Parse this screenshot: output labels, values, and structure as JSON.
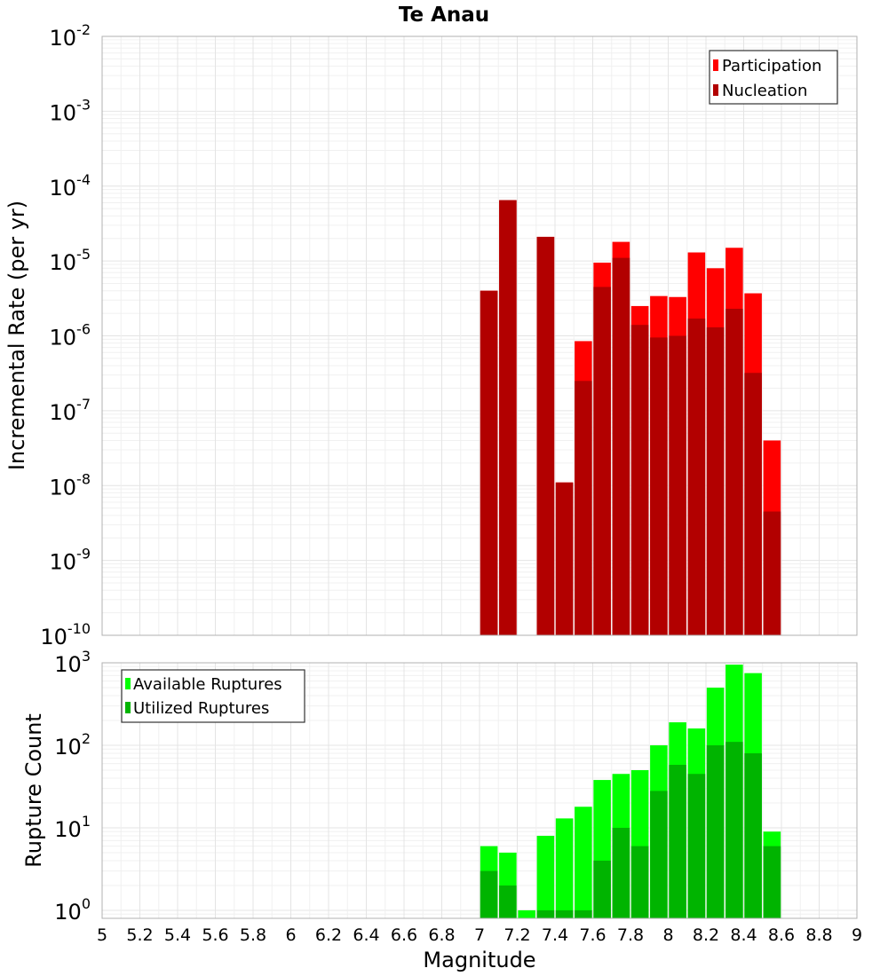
{
  "colors": {
    "participation": "#ff0000",
    "nucleation": "#b20000",
    "available": "#00ff00",
    "utilized": "#00b400"
  },
  "chart_data": [
    {
      "type": "bar",
      "title": "Te Anau",
      "xlabel": "",
      "ylabel": "Incremental Rate (per yr)",
      "yscale": "log",
      "xlim": [
        5,
        9
      ],
      "ylim": [
        1e-10,
        0.01
      ],
      "ytick_exponents": [
        "-10",
        "-9",
        "-8",
        "-7",
        "-6",
        "-5",
        "-4",
        "-3",
        "-2"
      ],
      "legend": {
        "position": "top-right",
        "entries": [
          "Participation",
          "Nucleation"
        ]
      },
      "x": [
        7.0,
        7.1,
        7.2,
        7.3,
        7.4,
        7.5,
        7.6,
        7.7,
        7.8,
        7.9,
        8.0,
        8.1,
        8.2,
        8.3,
        8.4,
        8.5
      ],
      "series": [
        {
          "name": "Participation",
          "values": [
            4e-06,
            6.5e-05,
            null,
            2.1e-05,
            1.1e-08,
            8.5e-07,
            9.5e-06,
            1.8e-05,
            2.5e-06,
            3.4e-06,
            3.3e-06,
            1.3e-05,
            8e-06,
            1.5e-05,
            3.7e-06,
            4e-08
          ]
        },
        {
          "name": "Nucleation",
          "values": [
            4e-06,
            6.5e-05,
            null,
            2.1e-05,
            1.1e-08,
            2.5e-07,
            4.5e-06,
            1.1e-05,
            1.4e-06,
            9.5e-07,
            1e-06,
            1.7e-06,
            1.3e-06,
            2.3e-06,
            3.2e-07,
            4.5e-09
          ]
        }
      ]
    },
    {
      "type": "bar",
      "xlabel": "Magnitude",
      "ylabel": "Rupture Count",
      "yscale": "log",
      "xlim": [
        5,
        9
      ],
      "ylim": [
        0.8,
        1000
      ],
      "ytick_exponents": [
        "0",
        "1",
        "2",
        "3"
      ],
      "xticks": [
        "5",
        "5.2",
        "5.4",
        "5.6",
        "5.8",
        "6",
        "6.2",
        "6.4",
        "6.6",
        "6.8",
        "7",
        "7.2",
        "7.4",
        "7.6",
        "7.8",
        "8",
        "8.2",
        "8.4",
        "8.6",
        "8.8",
        "9"
      ],
      "legend": {
        "position": "top-left",
        "entries": [
          "Available Ruptures",
          "Utilized Ruptures"
        ]
      },
      "x": [
        7.0,
        7.1,
        7.2,
        7.3,
        7.4,
        7.5,
        7.6,
        7.7,
        7.8,
        7.9,
        8.0,
        8.1,
        8.2,
        8.3,
        8.4,
        8.5
      ],
      "series": [
        {
          "name": "Available Ruptures",
          "values": [
            6,
            5,
            1,
            8,
            13,
            18,
            38,
            45,
            50,
            100,
            190,
            160,
            500,
            950,
            750,
            9
          ]
        },
        {
          "name": "Utilized Ruptures",
          "values": [
            3,
            2,
            null,
            1,
            1,
            1,
            4,
            10,
            6,
            28,
            58,
            45,
            100,
            110,
            80,
            6
          ]
        }
      ]
    }
  ]
}
